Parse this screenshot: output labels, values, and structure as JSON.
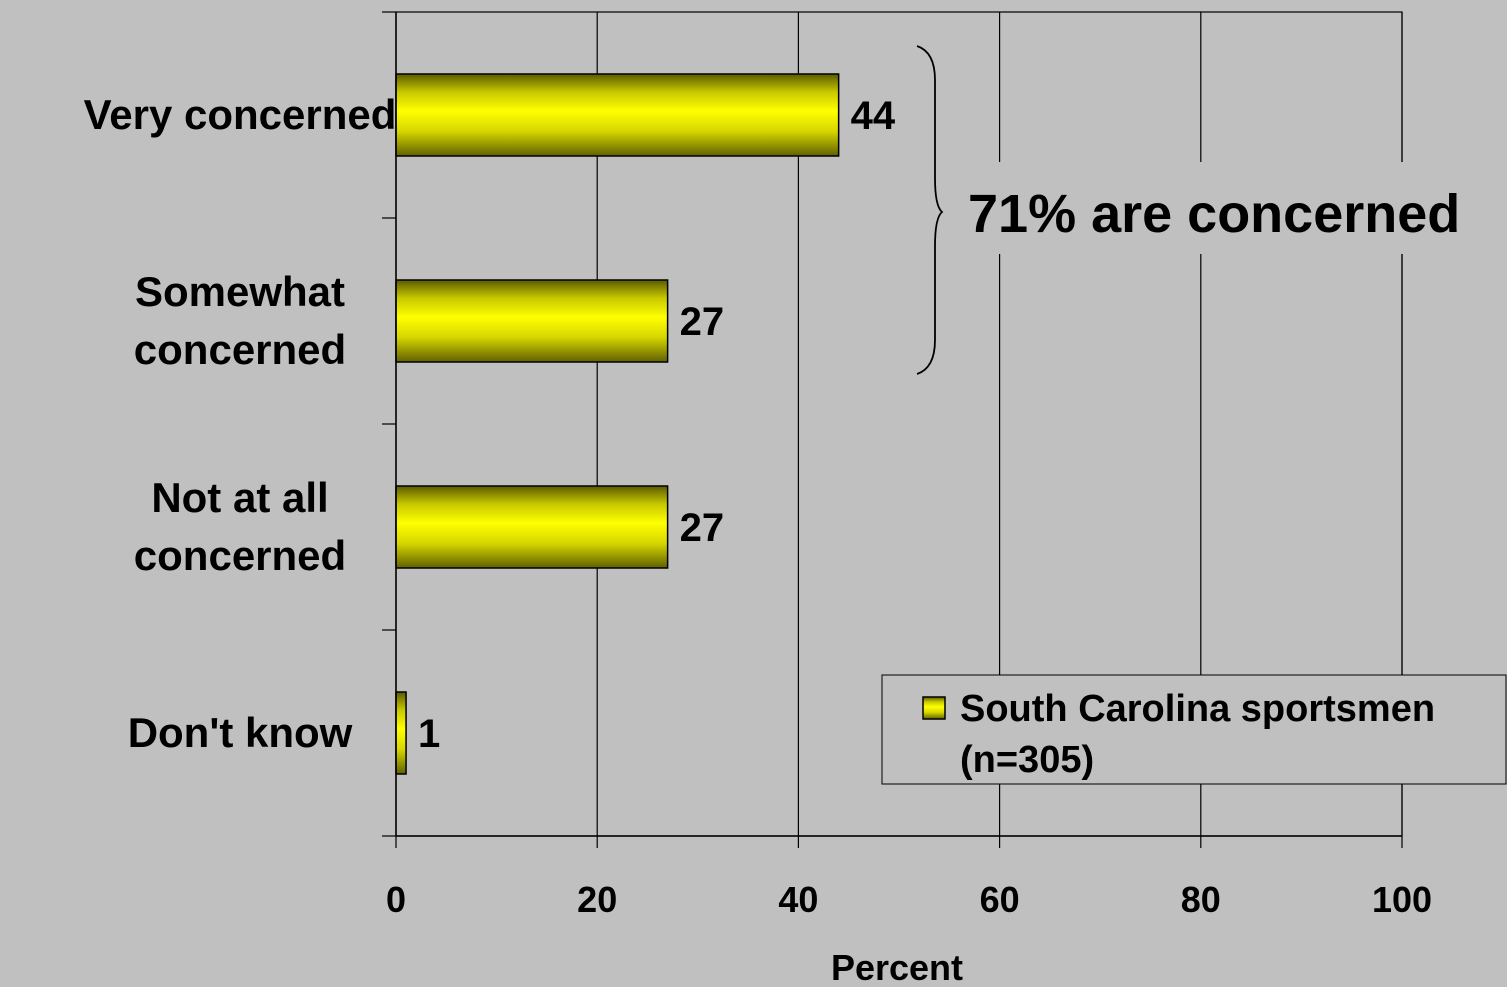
{
  "chart_data": {
    "type": "bar",
    "orientation": "horizontal",
    "categories": [
      "Very concerned",
      "Somewhat concerned",
      "Not at all concerned",
      "Don't know"
    ],
    "category_lines": [
      [
        "Very concerned"
      ],
      [
        "Somewhat",
        "concerned"
      ],
      [
        "Not at all",
        "concerned"
      ],
      [
        "Don't know"
      ]
    ],
    "series": [
      {
        "name": "South Carolina sportsmen (n=305)",
        "name_lines": [
          "South Carolina sportsmen",
          "(n=305)"
        ],
        "values": [
          44,
          27,
          27,
          1
        ]
      }
    ],
    "data_labels": [
      "44",
      "27",
      "27",
      "1"
    ],
    "xlabel": "Percent",
    "xlim": [
      0,
      100
    ],
    "xticks": [
      0,
      20,
      40,
      60,
      80,
      100
    ],
    "grid": true,
    "legend": "bottom-right",
    "annotation": {
      "text": "71% are concerned",
      "brackets": [
        "Very concerned",
        "Somewhat concerned"
      ]
    },
    "colors": {
      "bar": "#ffff00",
      "bar_edge": "#666600",
      "background": "#c0c0c0",
      "grid": "#000000"
    }
  }
}
